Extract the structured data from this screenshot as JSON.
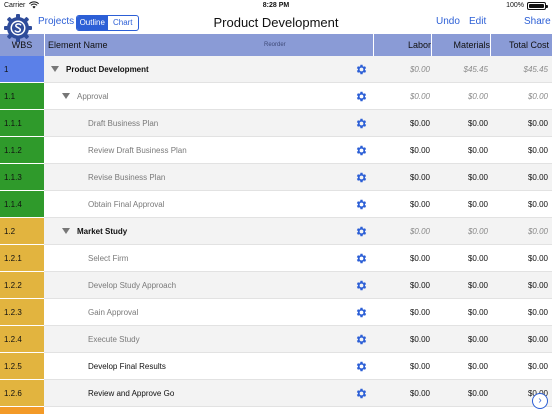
{
  "status": {
    "carrier": "Carrier",
    "time": "8:28 PM",
    "battery": "100%"
  },
  "nav": {
    "projects": "Projects",
    "segments": [
      "Outline",
      "Chart"
    ],
    "title": "Product Development",
    "undo": "Undo",
    "edit": "Edit",
    "share": "Share"
  },
  "header": {
    "wbs": "WBS",
    "element_name": "Element Name",
    "reorder": "Reorder",
    "labor": "Labor",
    "materials": "Materials",
    "total_cost": "Total Cost"
  },
  "colors": {
    "level1": "#5b80e8",
    "level2_approval": "#2f9a2b",
    "level2_market": "#e2b43f",
    "level3_next": "#f39a28",
    "accent": "#2c5fd6"
  },
  "rows": [
    {
      "wbs": "1",
      "name": "Product Development",
      "labor": "$0.00",
      "materials": "$45.45",
      "total": "$45.45"
    },
    {
      "wbs": "1.1",
      "name": "Approval",
      "labor": "$0.00",
      "materials": "$0.00",
      "total": "$0.00"
    },
    {
      "wbs": "1.1.1",
      "name": "Draft Business Plan",
      "labor": "$0.00",
      "materials": "$0.00",
      "total": "$0.00"
    },
    {
      "wbs": "1.1.2",
      "name": "Review Draft Business Plan",
      "labor": "$0.00",
      "materials": "$0.00",
      "total": "$0.00"
    },
    {
      "wbs": "1.1.3",
      "name": "Revise Business Plan",
      "labor": "$0.00",
      "materials": "$0.00",
      "total": "$0.00"
    },
    {
      "wbs": "1.1.4",
      "name": "Obtain Final Approval",
      "labor": "$0.00",
      "materials": "$0.00",
      "total": "$0.00"
    },
    {
      "wbs": "1.2",
      "name": "Market Study",
      "labor": "$0.00",
      "materials": "$0.00",
      "total": "$0.00"
    },
    {
      "wbs": "1.2.1",
      "name": "Select Firm",
      "labor": "$0.00",
      "materials": "$0.00",
      "total": "$0.00"
    },
    {
      "wbs": "1.2.2",
      "name": "Develop Study Approach",
      "labor": "$0.00",
      "materials": "$0.00",
      "total": "$0.00"
    },
    {
      "wbs": "1.2.3",
      "name": "Gain Approval",
      "labor": "$0.00",
      "materials": "$0.00",
      "total": "$0.00"
    },
    {
      "wbs": "1.2.4",
      "name": "Execute Study",
      "labor": "$0.00",
      "materials": "$0.00",
      "total": "$0.00"
    },
    {
      "wbs": "1.2.5",
      "name": "Develop Final Results",
      "labor": "$0.00",
      "materials": "$0.00",
      "total": "$0.00"
    },
    {
      "wbs": "1.2.6",
      "name": "Review and Approve Go",
      "labor": "$0.00",
      "materials": "$0.00",
      "total": "$0.00"
    }
  ]
}
